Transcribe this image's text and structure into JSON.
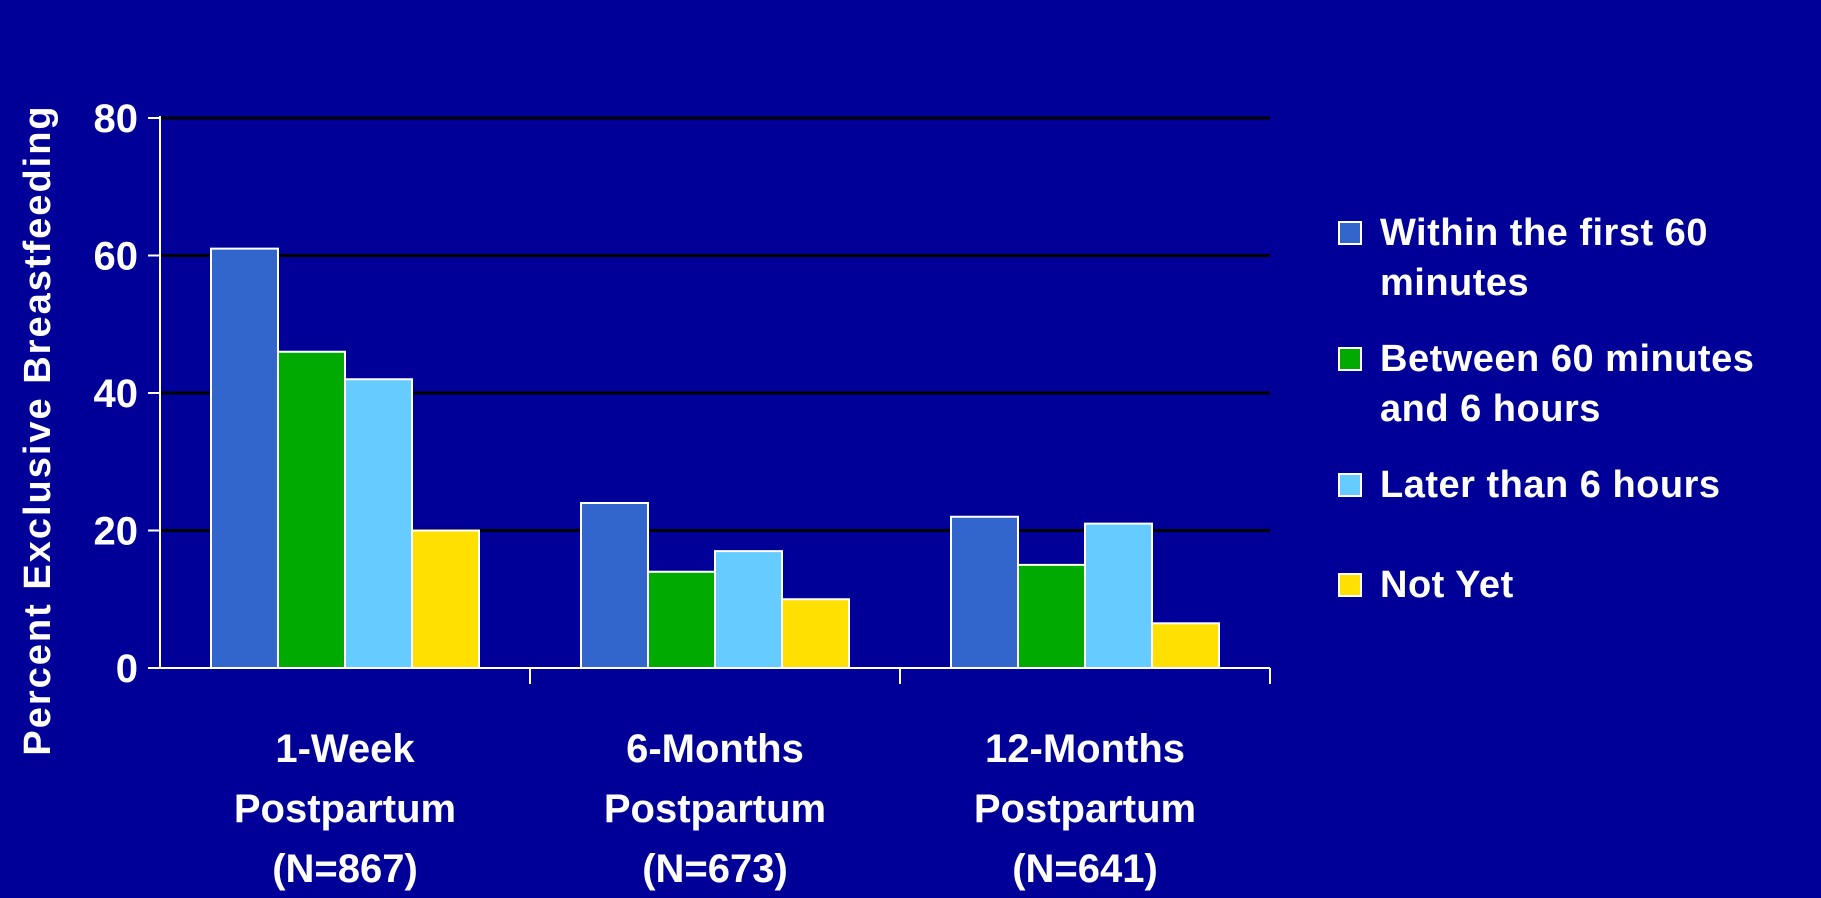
{
  "chart_data": {
    "type": "bar",
    "title": "",
    "ylabel": "Percent Exclusive Breastfeeding",
    "xlabel": "",
    "ylim": [
      0,
      80
    ],
    "yticks": [
      0,
      20,
      40,
      60,
      80
    ],
    "grid": true,
    "legend_position": "right",
    "categories": [
      [
        "1-Week",
        "Postpartum",
        "(N=867)"
      ],
      [
        "6-Months",
        "Postpartum",
        "(N=673)"
      ],
      [
        "12-Months",
        "Postpartum",
        "(N=641)"
      ]
    ],
    "series": [
      {
        "name": "Within the first 60 minutes",
        "legend_lines": [
          "Within the first 60",
          "minutes"
        ],
        "color": "#3366CC",
        "values": [
          61,
          24,
          22
        ]
      },
      {
        "name": "Between 60 minutes and 6 hours",
        "legend_lines": [
          "Between 60 minutes",
          "and 6 hours"
        ],
        "color": "#00AA00",
        "values": [
          46,
          14,
          15
        ]
      },
      {
        "name": "Later than 6 hours",
        "legend_lines": [
          "Later than 6 hours"
        ],
        "color": "#66CCFF",
        "values": [
          42,
          17,
          21
        ]
      },
      {
        "name": "Not Yet",
        "legend_lines": [
          "Not Yet"
        ],
        "color": "#FFE000",
        "values": [
          20,
          10,
          6.5
        ]
      }
    ]
  },
  "colors": {
    "background": "#000099",
    "text": "#ffffff",
    "gridline": "#000000",
    "axis": "#ffffff"
  }
}
